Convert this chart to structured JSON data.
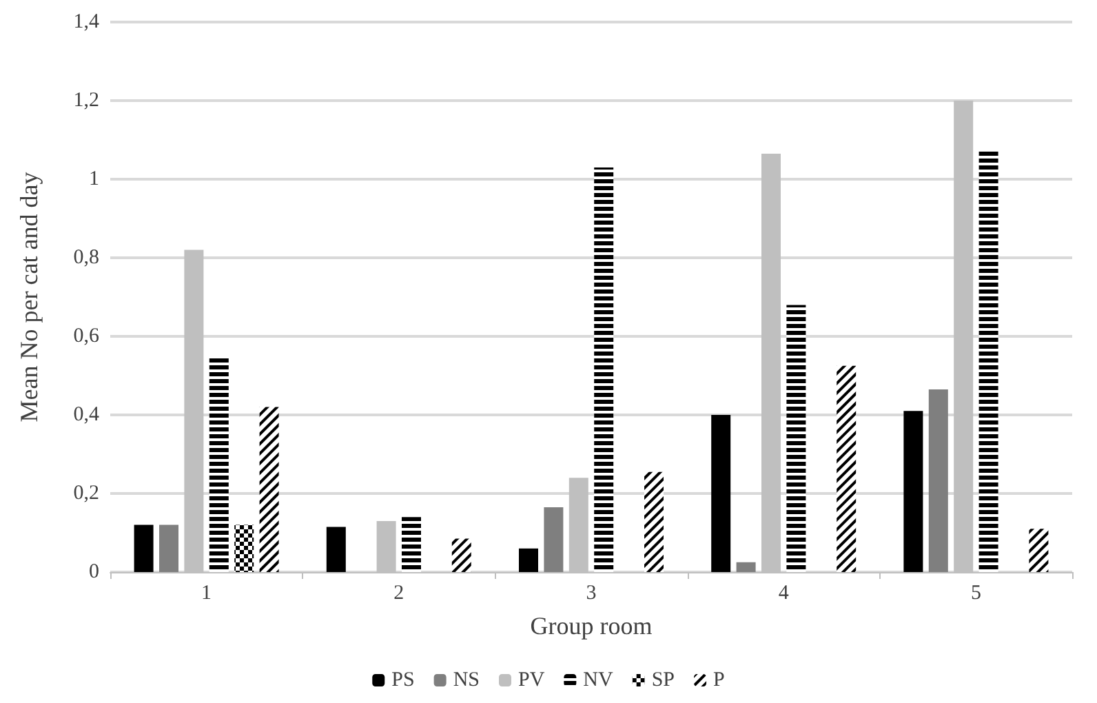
{
  "chart_data": {
    "type": "bar",
    "xlabel": "Group room",
    "ylabel": "Mean No per cat and day",
    "categories": [
      "1",
      "2",
      "3",
      "4",
      "5"
    ],
    "series": [
      {
        "name": "PS",
        "color": "#000000",
        "values": [
          0.12,
          0.115,
          0.06,
          0.4,
          0.41
        ]
      },
      {
        "name": "NS",
        "color": "#7f7f7f",
        "values": [
          0.12,
          0,
          0.165,
          0.025,
          0.465
        ]
      },
      {
        "name": "PV",
        "color": "#bfbfbf",
        "values": [
          0.82,
          0.13,
          0.24,
          1.065,
          1.2
        ]
      },
      {
        "name": "NV",
        "color": "#000000",
        "values": [
          0.55,
          0.14,
          1.03,
          0.68,
          1.07
        ]
      },
      {
        "name": "SP",
        "color": "#000000",
        "values": [
          0.12,
          0,
          0,
          0,
          0
        ]
      },
      {
        "name": "P",
        "color": "#000000",
        "values": [
          0.42,
          0.085,
          0.255,
          0.525,
          0.11
        ]
      }
    ],
    "ylim": [
      0,
      1.4
    ],
    "yticks": [
      {
        "value": 0,
        "label": "0"
      },
      {
        "value": 0.2,
        "label": "0,2"
      },
      {
        "value": 0.4,
        "label": "0,4"
      },
      {
        "value": 0.6,
        "label": "0,6"
      },
      {
        "value": 0.8,
        "label": "0,8"
      },
      {
        "value": 1,
        "label": "1"
      },
      {
        "value": 1.2,
        "label": "1,2"
      },
      {
        "value": 1.4,
        "label": "1,4"
      }
    ],
    "grid": "y",
    "legend": "bottom"
  }
}
